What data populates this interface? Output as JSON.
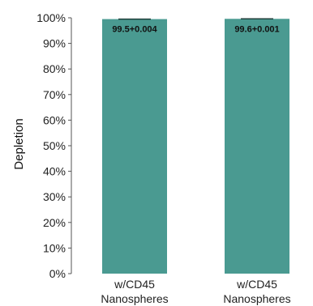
{
  "chart_data": {
    "type": "bar",
    "categories": [
      "w/CD45\nNanospheres",
      "w/CD45\nNanospheres"
    ],
    "values": [
      99.5,
      99.6
    ],
    "data_labels": [
      "99.5+0.004",
      "99.6+0.001"
    ],
    "ylabel": "Depletion",
    "ylim": [
      0,
      100
    ],
    "y_ticks": [
      "0%",
      "10%",
      "20%",
      "30%",
      "40%",
      "50%",
      "60%",
      "70%",
      "80%",
      "90%",
      "100%"
    ],
    "grid": false,
    "legend": "none",
    "bar_color": "#4a9a91",
    "error_bar_color": "#1f3f3b"
  }
}
